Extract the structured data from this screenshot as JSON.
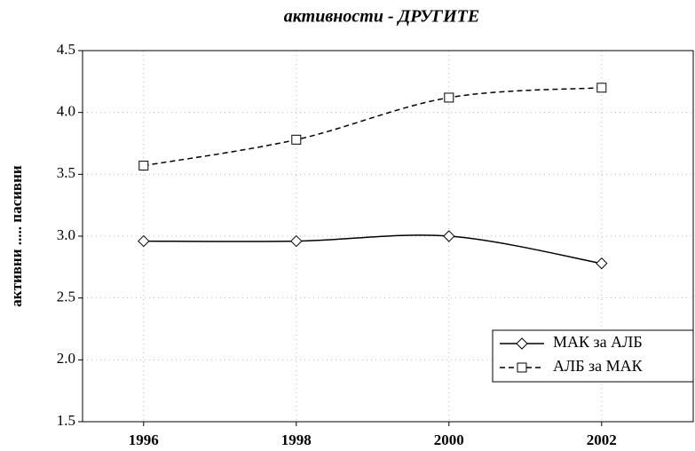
{
  "chart_data": {
    "type": "line",
    "title": "активности - ДРУГИТЕ",
    "ylabel": "активни ..... пасивни",
    "x": [
      1996,
      1998,
      2000,
      2002
    ],
    "xlim": [
      1995.2,
      2003.2
    ],
    "xticks": [
      1996,
      1998,
      2000,
      2002
    ],
    "ylim": [
      1.5,
      4.5
    ],
    "yticks": [
      1.5,
      {
        "value": 2,
        "label": "2.0"
      },
      2.5,
      {
        "value": 3,
        "label": "3.0"
      },
      3.5,
      {
        "value": 4,
        "label": "4.0"
      },
      4.5
    ],
    "grid": true,
    "legend": "lower right",
    "series": [
      {
        "name": "МАК за АЛБ",
        "color": "#000000",
        "marker": "diamond",
        "dash": "solid",
        "values": [
          2.96,
          2.96,
          3.0,
          2.78
        ]
      },
      {
        "name": "АЛБ за МАК",
        "color": "#000000",
        "marker": "square",
        "dash": "dashed",
        "values": [
          3.57,
          3.78,
          4.12,
          4.2
        ]
      }
    ]
  }
}
